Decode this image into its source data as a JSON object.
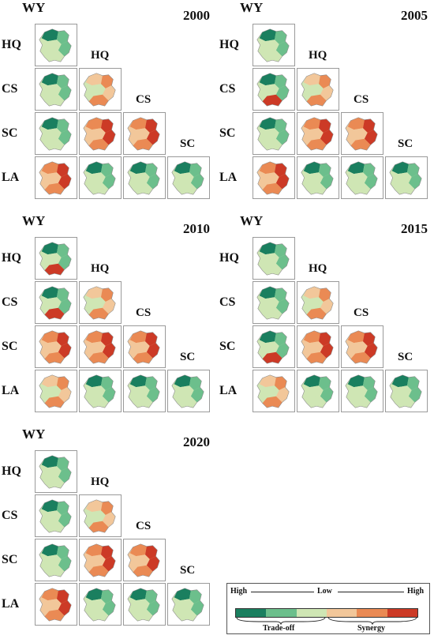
{
  "labels": {
    "wy": "WY",
    "hq": "HQ",
    "cs": "CS",
    "sc": "SC",
    "la": "LA"
  },
  "years": [
    "2000",
    "2005",
    "2010",
    "2015",
    "2020"
  ],
  "colors": {
    "dark_green": "#1a7f5f",
    "mid_green": "#6cbf8c",
    "light_green": "#cfe6b4",
    "light_orange": "#f2c79a",
    "mid_orange": "#ea8a54",
    "dark_red": "#cc3a26"
  },
  "legend": {
    "high_left": "High",
    "low": "Low",
    "high_right": "High",
    "tradeoff": "Trade-off",
    "synergy": "Synergy"
  }
}
